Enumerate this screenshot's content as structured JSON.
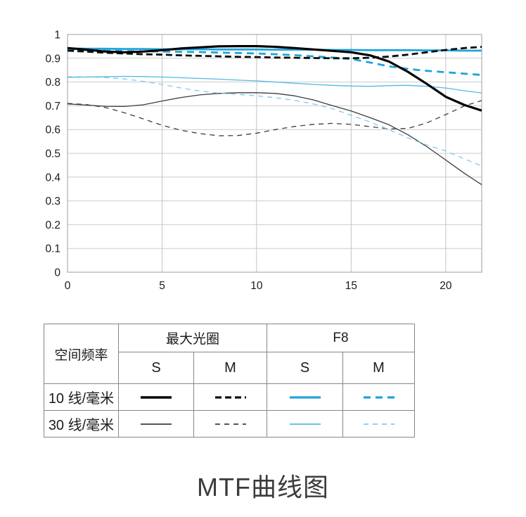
{
  "chart_data": {
    "type": "line",
    "title": "MTF曲线图",
    "xlabel": "",
    "ylabel": "",
    "xlim": [
      0,
      21.9
    ],
    "ylim": [
      0,
      1
    ],
    "grid": true,
    "xticks": [
      0,
      5,
      10,
      15,
      20
    ],
    "yticks": [
      0,
      0.1,
      0.2,
      0.3,
      0.4,
      0.5,
      0.6,
      0.7,
      0.8,
      0.9,
      1
    ],
    "x": [
      0,
      1,
      2,
      3,
      4,
      5,
      6,
      7,
      8,
      9,
      10,
      11,
      12,
      13,
      14,
      15,
      16,
      17,
      18,
      19,
      20,
      21,
      21.9
    ],
    "series": [
      {
        "name": "最大光圈 30线/毫米 M",
        "style": "black-thin-dashed",
        "values": [
          0.71,
          0.705,
          0.693,
          0.671,
          0.645,
          0.618,
          0.597,
          0.583,
          0.574,
          0.575,
          0.585,
          0.6,
          0.613,
          0.622,
          0.626,
          0.622,
          0.612,
          0.603,
          0.605,
          0.628,
          0.663,
          0.7,
          0.722
        ]
      },
      {
        "name": "最大光圈 30线/毫米 S",
        "style": "black-thin-solid",
        "values": [
          0.708,
          0.703,
          0.698,
          0.697,
          0.704,
          0.72,
          0.735,
          0.746,
          0.752,
          0.755,
          0.755,
          0.752,
          0.742,
          0.725,
          0.701,
          0.678,
          0.65,
          0.62,
          0.578,
          0.528,
          0.472,
          0.415,
          0.368
        ]
      },
      {
        "name": "F8 30线/毫米 M",
        "style": "cyan-thin-dashed",
        "values": [
          0.822,
          0.822,
          0.819,
          0.813,
          0.803,
          0.79,
          0.775,
          0.762,
          0.753,
          0.748,
          0.742,
          0.734,
          0.723,
          0.708,
          0.688,
          0.66,
          0.632,
          0.6,
          0.565,
          0.535,
          0.51,
          0.476,
          0.447
        ]
      },
      {
        "name": "F8 30线/毫米 S",
        "style": "cyan-thin-solid",
        "values": [
          0.82,
          0.821,
          0.822,
          0.824,
          0.823,
          0.821,
          0.818,
          0.815,
          0.812,
          0.808,
          0.805,
          0.8,
          0.795,
          0.79,
          0.786,
          0.783,
          0.782,
          0.785,
          0.786,
          0.782,
          0.775,
          0.763,
          0.754
        ]
      },
      {
        "name": "F8 10线/毫米 M",
        "style": "cyan-thick-dashed",
        "values": [
          0.936,
          0.934,
          0.932,
          0.93,
          0.929,
          0.928,
          0.927,
          0.926,
          0.924,
          0.922,
          0.92,
          0.917,
          0.913,
          0.908,
          0.903,
          0.897,
          0.882,
          0.866,
          0.855,
          0.847,
          0.841,
          0.835,
          0.83
        ]
      },
      {
        "name": "F8 10线/毫米 S",
        "style": "cyan-thick-solid",
        "values": [
          0.941,
          0.94,
          0.94,
          0.939,
          0.939,
          0.938,
          0.938,
          0.938,
          0.937,
          0.937,
          0.937,
          0.936,
          0.936,
          0.936,
          0.935,
          0.935,
          0.934,
          0.934,
          0.934,
          0.933,
          0.933,
          0.932,
          0.932
        ]
      },
      {
        "name": "最大光圈 10线/毫米 M",
        "style": "black-thick-dashed",
        "values": [
          0.932,
          0.928,
          0.923,
          0.92,
          0.917,
          0.915,
          0.912,
          0.91,
          0.908,
          0.906,
          0.905,
          0.903,
          0.902,
          0.901,
          0.9,
          0.9,
          0.902,
          0.907,
          0.915,
          0.925,
          0.935,
          0.943,
          0.948
        ]
      },
      {
        "name": "最大光圈 10线/毫米 S",
        "style": "black-thick-solid",
        "values": [
          0.943,
          0.936,
          0.928,
          0.925,
          0.928,
          0.934,
          0.941,
          0.946,
          0.95,
          0.951,
          0.951,
          0.948,
          0.943,
          0.937,
          0.931,
          0.925,
          0.912,
          0.886,
          0.843,
          0.792,
          0.738,
          0.703,
          0.68
        ]
      }
    ]
  },
  "styles": {
    "black-thick-solid": {
      "color": "#000000",
      "width": 3.2,
      "dash": ""
    },
    "black-thick-dashed": {
      "color": "#0d0d0d",
      "width": 2.8,
      "dash": "9,5"
    },
    "black-thin-solid": {
      "color": "#3d3d3d",
      "width": 1.3,
      "dash": ""
    },
    "black-thin-dashed": {
      "color": "#3d3d3d",
      "width": 1.3,
      "dash": "7,6"
    },
    "cyan-thick-solid": {
      "color": "#21a3d9",
      "width": 2.8,
      "dash": ""
    },
    "cyan-thick-dashed": {
      "color": "#21a3d9",
      "width": 2.8,
      "dash": "10,7"
    },
    "cyan-thin-solid": {
      "color": "#54b9e3",
      "width": 1.3,
      "dash": ""
    },
    "cyan-thin-dashed": {
      "color": "#7ecbec",
      "width": 1.3,
      "dash": "7,6"
    }
  },
  "legend_table": {
    "corner_header": "空间频率",
    "groups": [
      {
        "label": "最大光圈"
      },
      {
        "label": "F8"
      }
    ],
    "sub_headers": [
      "S",
      "M",
      "S",
      "M"
    ],
    "rows": [
      {
        "label": "10 线/毫米",
        "swatches": [
          "black-thick-solid",
          "black-thick-dashed",
          "cyan-thick-solid",
          "cyan-thick-dashed"
        ]
      },
      {
        "label": "30 线/毫米",
        "swatches": [
          "black-thin-solid",
          "black-thin-dashed",
          "cyan-thin-solid",
          "cyan-thin-dashed"
        ]
      }
    ]
  }
}
